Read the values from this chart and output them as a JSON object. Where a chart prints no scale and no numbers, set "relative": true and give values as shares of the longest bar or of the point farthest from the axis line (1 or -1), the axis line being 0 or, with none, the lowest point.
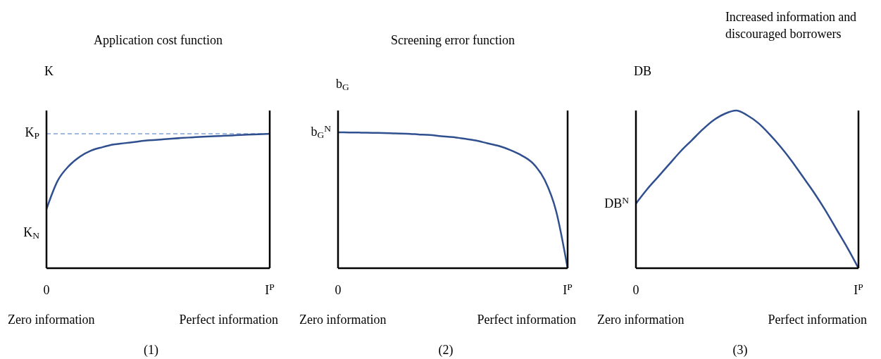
{
  "chart_data": [
    {
      "type": "line",
      "title": "Application cost function",
      "ylabel": "K",
      "relative": true,
      "categories": [
        "0",
        null,
        null,
        null,
        null,
        null,
        null,
        null,
        null,
        null,
        null,
        null,
        null,
        null,
        null,
        null,
        null,
        null,
        null,
        null,
        "I$^{P}$"
      ],
      "series": [
        {
          "color": "#2f4f8f",
          "values": [
            0.44,
            0.65,
            0.76,
            0.83,
            0.875,
            0.9,
            0.92,
            0.93,
            0.94,
            0.95,
            0.955,
            0.962,
            0.968,
            0.973,
            0.978,
            0.982,
            0.985,
            0.989,
            0.993,
            0.996,
            1
          ]
        }
      ],
      "ref_lines": [
        {
          "axis": "y",
          "value": 1,
          "label": "K$_{P}$",
          "color": "#4472c4",
          "line_style": "dashed"
        }
      ],
      "annotations": [
        "K$_{N}$",
        "Zero information",
        "Perfect information",
        "(1)"
      ]
    },
    {
      "type": "line",
      "title": "Screening error function",
      "ylabel": "b$_{G}$",
      "relative": true,
      "categories": [
        "0",
        null,
        null,
        null,
        null,
        null,
        null,
        null,
        null,
        null,
        null,
        null,
        null,
        null,
        null,
        null,
        null,
        null,
        null,
        null,
        "I$^{P}$"
      ],
      "series": [
        {
          "color": "#2f4f8f",
          "values": [
            1,
            0.999,
            0.998,
            0.996,
            0.995,
            0.992,
            0.99,
            0.985,
            0.98,
            0.972,
            0.965,
            0.953,
            0.94,
            0.92,
            0.9,
            0.87,
            0.83,
            0.77,
            0.65,
            0.42,
            0
          ]
        }
      ],
      "annotations": [
        {
          "text": "b$_{G}$$^{N}$",
          "x": "0",
          "y": 1
        },
        "Zero information",
        "Perfect information",
        "(2)"
      ]
    },
    {
      "type": "line",
      "title": "Increased information and discouraged borrowers",
      "ylabel": "DB",
      "relative": true,
      "categories": [
        "0",
        null,
        null,
        null,
        null,
        null,
        null,
        null,
        null,
        null,
        null,
        null,
        null,
        null,
        null,
        null,
        null,
        null,
        null,
        null,
        "I$^{P}$"
      ],
      "series": [
        {
          "color": "#2f4f8f",
          "values": [
            0.41,
            0.5,
            0.58,
            0.66,
            0.74,
            0.81,
            0.88,
            0.94,
            0.98,
            1,
            0.97,
            0.92,
            0.85,
            0.77,
            0.68,
            0.58,
            0.48,
            0.37,
            0.25,
            0.13,
            0
          ]
        }
      ],
      "annotations": [
        {
          "text": "DB$^{N}$",
          "x": "0",
          "y": 0.41
        },
        "Zero information",
        "Perfect information",
        "(3)"
      ]
    }
  ]
}
